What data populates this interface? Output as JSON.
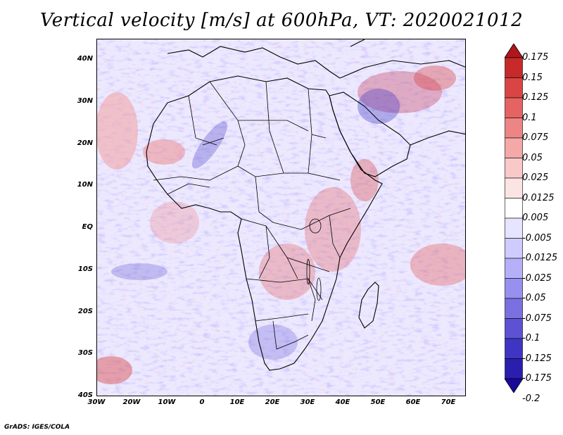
{
  "title": "Vertical velocity [m/s] at 600hPa, VT: 2020021012",
  "credit": "GrADS: IGES/COLA",
  "lat_labels": [
    "40N",
    "30N",
    "20N",
    "10N",
    "EQ",
    "10S",
    "20S",
    "30S",
    "40S"
  ],
  "lon_labels": [
    "30W",
    "20W",
    "10W",
    "0",
    "10E",
    "20E",
    "30E",
    "40E",
    "50E",
    "60E",
    "70E"
  ],
  "colorbar": {
    "labels": [
      "0.175",
      "0.15",
      "0.125",
      "0.1",
      "0.075",
      "0.05",
      "0.025",
      "0.0125",
      "0.005",
      "-0.005",
      "-0.0125",
      "-0.025",
      "-0.05",
      "-0.075",
      "-0.1",
      "-0.125",
      "-0.175",
      "-0.2"
    ],
    "colors": [
      "#b0161c",
      "#c62a2a",
      "#d94545",
      "#e56363",
      "#ee8585",
      "#f4a8a8",
      "#f9c9c9",
      "#fde4e4",
      "#ffffff",
      "#e6e4ff",
      "#cfcbff",
      "#b6b0f8",
      "#9890ee",
      "#7a70e0",
      "#5c52d2",
      "#3e36c2",
      "#2a1eae",
      "#1a0a9c"
    ]
  }
}
